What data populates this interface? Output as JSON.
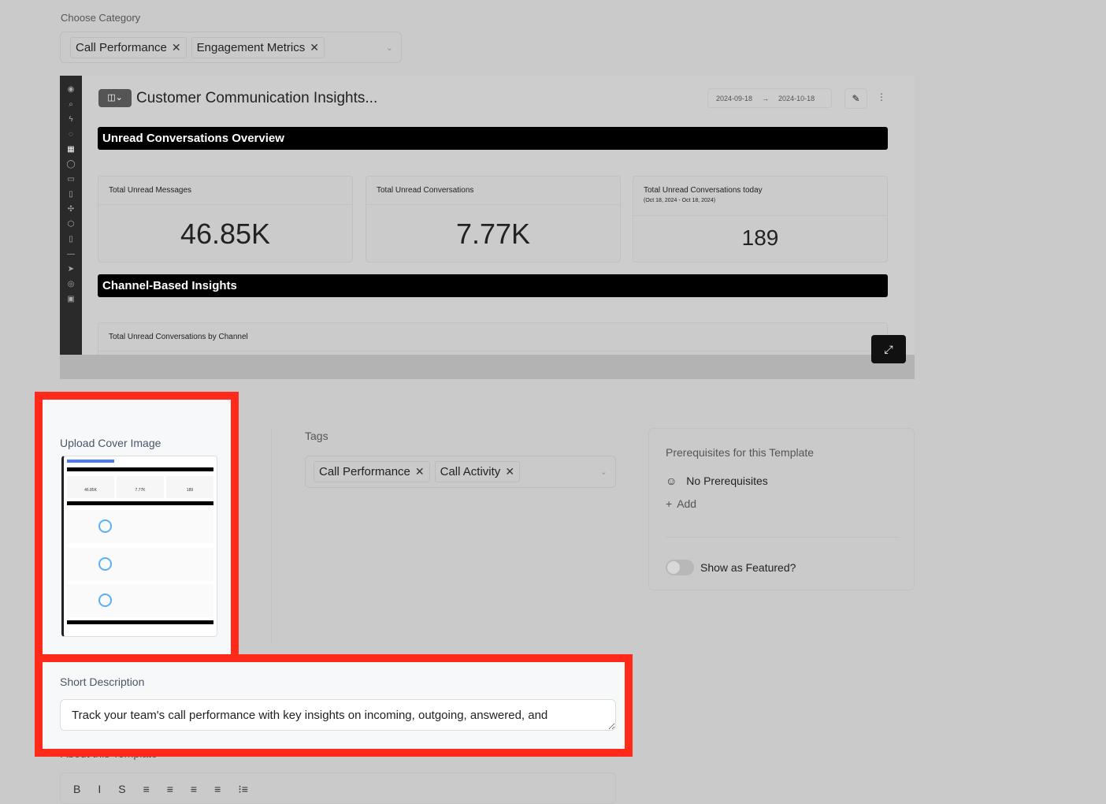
{
  "category": {
    "label": "Choose Category",
    "chips": [
      "Call Performance",
      "Engagement Metrics"
    ]
  },
  "dashboard": {
    "title": "Customer Communication Insights...",
    "date_from": "2024-09-18",
    "date_to": "2024-10-18",
    "sections": [
      "Unread Conversations Overview",
      "Channel-Based Insights"
    ],
    "metrics": [
      {
        "title": "Total Unread Messages",
        "sub": "",
        "value": "46.85K"
      },
      {
        "title": "Total Unread Conversations",
        "sub": "",
        "value": "7.77K"
      },
      {
        "title": "Total Unread Conversations today",
        "sub": "(Oct 18, 2024 - Oct 18, 2024)",
        "value": "189"
      }
    ],
    "chart_card_title": "Total Unread Conversations by Channel"
  },
  "cover": {
    "label": "Upload Cover Image"
  },
  "tags": {
    "label": "Tags",
    "chips": [
      "Call Performance",
      "Call Activity"
    ]
  },
  "prereq": {
    "title": "Prerequisites for this Template",
    "none": "No Prerequisites",
    "add": "Add",
    "featured": "Show as Featured?",
    "featured_on": false
  },
  "short_desc": {
    "label": "Short Description",
    "value": "Track your team's call performance with key insights on incoming, outgoing, answered, and"
  },
  "about": {
    "label": "About this Template",
    "toolbar": [
      "B",
      "I",
      "S",
      "≡",
      "≡",
      "≡",
      "≡",
      "⁝≡"
    ]
  },
  "colors": {
    "highlight": "#ff2a1a"
  }
}
